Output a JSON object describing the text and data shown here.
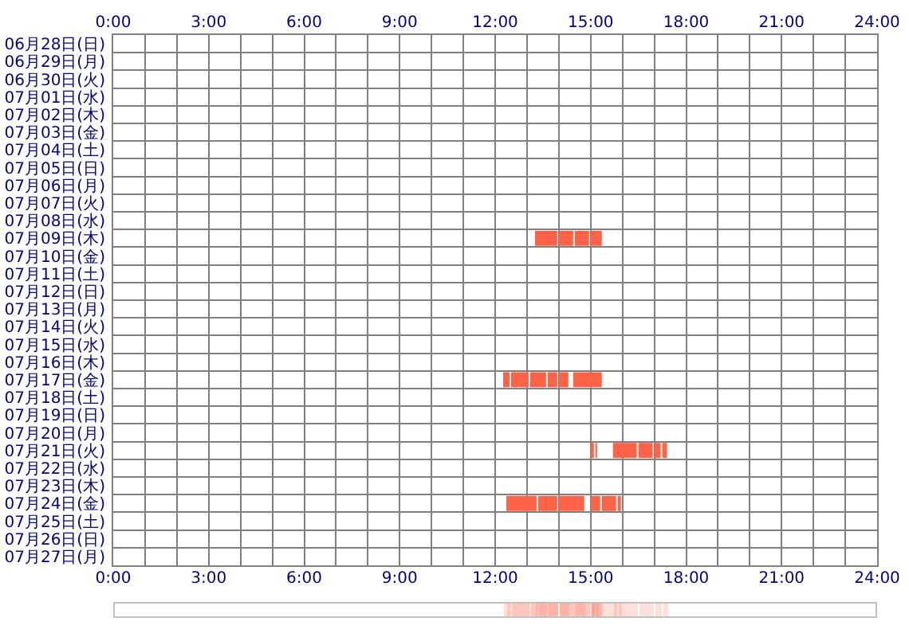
{
  "chart_data": {
    "type": "bar",
    "orientation": "horizontal",
    "stacked": false,
    "grid": true,
    "categories": [
      "06月28日(日)",
      "06月29日(月)",
      "06月30日(火)",
      "07月01日(水)",
      "07月02日(木)",
      "07月03日(金)",
      "07月04日(土)",
      "07月05日(日)",
      "07月06日(月)",
      "07月07日(火)",
      "07月08日(水)",
      "07月09日(木)",
      "07月10日(金)",
      "07月11日(土)",
      "07月12日(日)",
      "07月13日(月)",
      "07月14日(火)",
      "07月15日(水)",
      "07月16日(木)",
      "07月17日(金)",
      "07月18日(土)",
      "07月19日(日)",
      "07月20日(月)",
      "07月21日(火)",
      "07月22日(水)",
      "07月23日(木)",
      "07月24日(金)",
      "07月25日(土)",
      "07月26日(日)",
      "07月27日(月)"
    ],
    "xlim": [
      0,
      24
    ],
    "xticks": [
      {
        "value": 0,
        "label": "0:00"
      },
      {
        "value": 1,
        "label": null
      },
      {
        "value": 2,
        "label": null
      },
      {
        "value": 3,
        "label": "3:00"
      },
      {
        "value": 4,
        "label": null
      },
      {
        "value": 5,
        "label": null
      },
      {
        "value": 6,
        "label": "6:00"
      },
      {
        "value": 7,
        "label": null
      },
      {
        "value": 8,
        "label": null
      },
      {
        "value": 9,
        "label": "9:00"
      },
      {
        "value": 10,
        "label": null
      },
      {
        "value": 11,
        "label": null
      },
      {
        "value": 12,
        "label": "12:00"
      },
      {
        "value": 13,
        "label": null
      },
      {
        "value": 14,
        "label": null
      },
      {
        "value": 15,
        "label": "15:00"
      },
      {
        "value": 16,
        "label": null
      },
      {
        "value": 17,
        "label": null
      },
      {
        "value": 18,
        "label": "18:00"
      },
      {
        "value": 19,
        "label": null
      },
      {
        "value": 20,
        "label": null
      },
      {
        "value": 21,
        "label": "21:00"
      },
      {
        "value": 22,
        "label": null
      },
      {
        "value": 23,
        "label": null
      },
      {
        "value": 24,
        "label": "24:00"
      }
    ],
    "x2lim": [
      0,
      24
    ],
    "x2ticks": [
      {
        "value": 0,
        "label": "0:00"
      },
      {
        "value": 3,
        "label": "3:00"
      },
      {
        "value": 6,
        "label": "6:00"
      },
      {
        "value": 9,
        "label": "9:00"
      },
      {
        "value": 12,
        "label": "12:00"
      },
      {
        "value": 15,
        "label": "15:00"
      },
      {
        "value": 18,
        "label": "18:00"
      },
      {
        "value": 21,
        "label": "21:00"
      },
      {
        "value": 24,
        "label": "24:00"
      }
    ],
    "series": [
      {
        "color": "#ff6347",
        "base": [
          null,
          null,
          null,
          null,
          null,
          null,
          null,
          null,
          null,
          null,
          null,
          13.25,
          null,
          null,
          null,
          null,
          null,
          null,
          null,
          12.25,
          null,
          null,
          null,
          15.0,
          null,
          null,
          12.35,
          null,
          null,
          null
        ],
        "values": [
          null,
          null,
          null,
          null,
          null,
          null,
          null,
          null,
          null,
          null,
          null,
          0.7,
          null,
          null,
          null,
          null,
          null,
          null,
          null,
          0.2,
          null,
          null,
          null,
          0.1,
          null,
          null,
          0.95,
          null,
          null,
          null
        ]
      },
      {
        "color": "#ff6347",
        "base": [
          null,
          null,
          null,
          null,
          null,
          null,
          null,
          null,
          null,
          null,
          null,
          14.0,
          null,
          null,
          null,
          null,
          null,
          null,
          null,
          12.5,
          null,
          null,
          null,
          15.15,
          null,
          null,
          13.35,
          null,
          null,
          null
        ],
        "values": [
          null,
          null,
          null,
          null,
          null,
          null,
          null,
          null,
          null,
          null,
          null,
          0.45,
          null,
          null,
          null,
          null,
          null,
          null,
          null,
          0.55,
          null,
          null,
          null,
          0.05,
          null,
          null,
          0.6,
          null,
          null,
          null
        ]
      },
      {
        "color": "#ff6347",
        "base": [
          null,
          null,
          null,
          null,
          null,
          null,
          null,
          null,
          null,
          null,
          null,
          14.5,
          null,
          null,
          null,
          null,
          null,
          null,
          null,
          13.1,
          null,
          null,
          null,
          15.7,
          null,
          null,
          14.0,
          null,
          null,
          null
        ],
        "values": [
          null,
          null,
          null,
          null,
          null,
          null,
          null,
          null,
          null,
          null,
          null,
          0.45,
          null,
          null,
          null,
          null,
          null,
          null,
          null,
          0.5,
          null,
          null,
          null,
          0.75,
          null,
          null,
          0.8,
          null,
          null,
          null
        ]
      },
      {
        "color": "#ff6347",
        "base": [
          null,
          null,
          null,
          null,
          null,
          null,
          null,
          null,
          null,
          null,
          null,
          15.0,
          null,
          null,
          null,
          null,
          null,
          null,
          null,
          13.65,
          null,
          null,
          null,
          16.5,
          null,
          null,
          15.0,
          null,
          null,
          null
        ],
        "values": [
          null,
          null,
          null,
          null,
          null,
          null,
          null,
          null,
          null,
          null,
          null,
          0.35,
          null,
          null,
          null,
          null,
          null,
          null,
          null,
          0.3,
          null,
          null,
          null,
          0.45,
          null,
          null,
          0.3,
          null,
          null,
          null
        ]
      },
      {
        "color": "#ff6347",
        "base": [
          null,
          null,
          null,
          null,
          null,
          null,
          null,
          null,
          null,
          null,
          null,
          null,
          null,
          null,
          null,
          null,
          null,
          null,
          null,
          14.0,
          null,
          null,
          null,
          17.0,
          null,
          null,
          15.35,
          null,
          null,
          null
        ],
        "values": [
          null,
          null,
          null,
          null,
          null,
          null,
          null,
          null,
          null,
          null,
          null,
          null,
          null,
          null,
          null,
          null,
          null,
          null,
          null,
          0.3,
          null,
          null,
          null,
          0.2,
          null,
          null,
          0.45,
          null,
          null,
          null
        ]
      },
      {
        "color": "#ff6347",
        "base": [
          null,
          null,
          null,
          null,
          null,
          null,
          null,
          null,
          null,
          null,
          null,
          null,
          null,
          null,
          null,
          null,
          null,
          null,
          null,
          14.45,
          null,
          null,
          null,
          17.25,
          null,
          null,
          15.85,
          null,
          null,
          null
        ],
        "values": [
          null,
          null,
          null,
          null,
          null,
          null,
          null,
          null,
          null,
          null,
          null,
          null,
          null,
          null,
          null,
          null,
          null,
          null,
          null,
          0.9,
          null,
          null,
          null,
          0.15,
          null,
          null,
          0.1,
          null,
          null,
          null
        ]
      }
    ]
  }
}
